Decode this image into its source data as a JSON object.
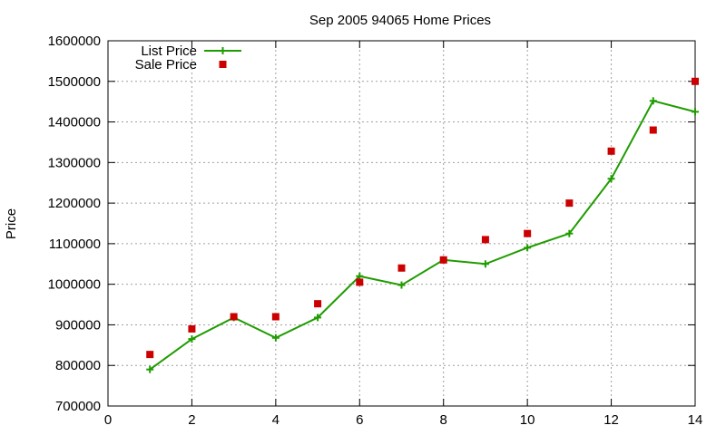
{
  "chart_data": {
    "type": "line",
    "title": "Sep 2005 94065 Home Prices",
    "xlabel": "",
    "ylabel": "Price",
    "xlim": [
      0,
      14
    ],
    "ylim": [
      700000,
      1600000
    ],
    "xticks": [
      0,
      2,
      4,
      6,
      8,
      10,
      12,
      14
    ],
    "yticks": [
      700000,
      800000,
      900000,
      1000000,
      1100000,
      1200000,
      1300000,
      1400000,
      1500000,
      1600000
    ],
    "grid": true,
    "legend_position": "top-left",
    "series": [
      {
        "name": "List Price",
        "style": "line-with-plus-markers",
        "color": "#1f9c00",
        "x": [
          1,
          2,
          3,
          4,
          5,
          6,
          7,
          8,
          9,
          10,
          11,
          12,
          13,
          14
        ],
        "values": [
          790000,
          865000,
          918000,
          868000,
          918000,
          1020000,
          998000,
          1060000,
          1050000,
          1090000,
          1125000,
          1260000,
          1452000,
          1425000
        ]
      },
      {
        "name": "Sale Price",
        "style": "square-markers",
        "color": "#cc0000",
        "x": [
          1,
          2,
          3,
          4,
          5,
          6,
          7,
          8,
          9,
          10,
          11,
          12,
          13,
          14
        ],
        "values": [
          827000,
          890000,
          920000,
          920000,
          952000,
          1005000,
          1040000,
          1060000,
          1110000,
          1125000,
          1200000,
          1328000,
          1380000,
          1500000
        ]
      }
    ]
  }
}
